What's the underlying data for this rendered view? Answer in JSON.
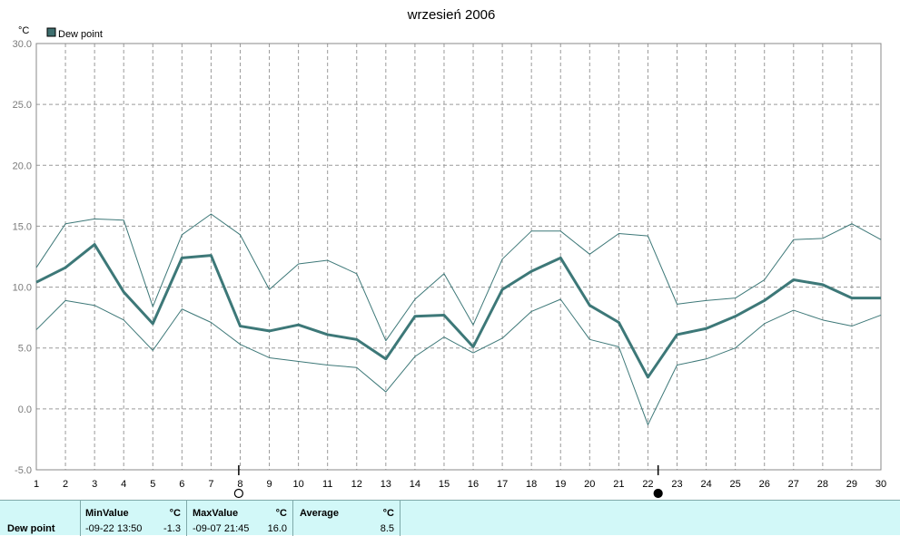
{
  "chart_data": {
    "type": "line",
    "title": "wrzesień 2006",
    "unit_label": "°C",
    "legend": {
      "label": "Dew point",
      "placement": "top-left",
      "swatch_color": "#3d6e6e"
    },
    "y_ticks": [
      "30.0",
      "25.0",
      "20.0",
      "15.0",
      "10.0",
      "5.0",
      "0.0",
      "-5.0"
    ],
    "ylim": [
      -5,
      30
    ],
    "xlim": [
      1,
      30
    ],
    "x": [
      1,
      2,
      3,
      4,
      5,
      6,
      7,
      8,
      9,
      10,
      11,
      12,
      13,
      14,
      15,
      16,
      17,
      18,
      19,
      20,
      21,
      22,
      23,
      24,
      25,
      26,
      27,
      28,
      29,
      30
    ],
    "x_ticks": [
      "1",
      "2",
      "3",
      "4",
      "5",
      "6",
      "7",
      "8",
      "9",
      "10",
      "11",
      "12",
      "13",
      "14",
      "15",
      "16",
      "17",
      "18",
      "19",
      "20",
      "21",
      "22",
      "23",
      "24",
      "25",
      "26",
      "27",
      "28",
      "29",
      "30"
    ],
    "grid": true,
    "series": [
      {
        "name": "Dew point",
        "role": "average",
        "color": "#3d7878",
        "values": [
          10.4,
          11.6,
          13.5,
          9.6,
          7.0,
          12.4,
          12.6,
          6.8,
          6.4,
          6.9,
          6.1,
          5.7,
          4.1,
          7.6,
          7.7,
          5.1,
          9.8,
          11.3,
          12.4,
          8.5,
          7.1,
          2.6,
          6.1,
          6.6,
          7.6,
          8.9,
          10.6,
          10.2,
          9.1,
          9.1
        ]
      },
      {
        "role": "max",
        "color": "#3d7878",
        "values": [
          11.6,
          15.2,
          15.6,
          15.5,
          8.4,
          14.3,
          16.0,
          14.3,
          9.8,
          11.9,
          12.2,
          11.1,
          5.6,
          9.0,
          11.1,
          6.9,
          12.3,
          14.6,
          14.6,
          12.7,
          14.4,
          14.2,
          8.6,
          8.9,
          9.1,
          10.6,
          13.9,
          14.0,
          15.2,
          13.9
        ]
      },
      {
        "role": "min",
        "color": "#3d7878",
        "values": [
          6.5,
          8.9,
          8.5,
          7.3,
          4.8,
          8.2,
          7.1,
          5.3,
          4.2,
          3.9,
          3.6,
          3.4,
          1.4,
          4.3,
          5.9,
          4.6,
          5.8,
          8.0,
          9.0,
          5.7,
          5.1,
          -1.3,
          3.6,
          4.1,
          5.0,
          7.0,
          8.1,
          7.3,
          6.8,
          7.7
        ]
      }
    ],
    "moon_phases": [
      {
        "day": 7.95,
        "phase": "full"
      },
      {
        "day": 22.35,
        "phase": "new"
      }
    ]
  },
  "stats": {
    "row_label": "Dew point",
    "min": {
      "header": "MinValue",
      "unit": "°C",
      "time": "-09-22  13:50",
      "value": "-1.3"
    },
    "max": {
      "header": "MaxValue",
      "unit": "°C",
      "time": "-09-07  21:45",
      "value": "16.0"
    },
    "avg": {
      "header": "Average",
      "unit": "°C",
      "value": "8.5"
    }
  }
}
